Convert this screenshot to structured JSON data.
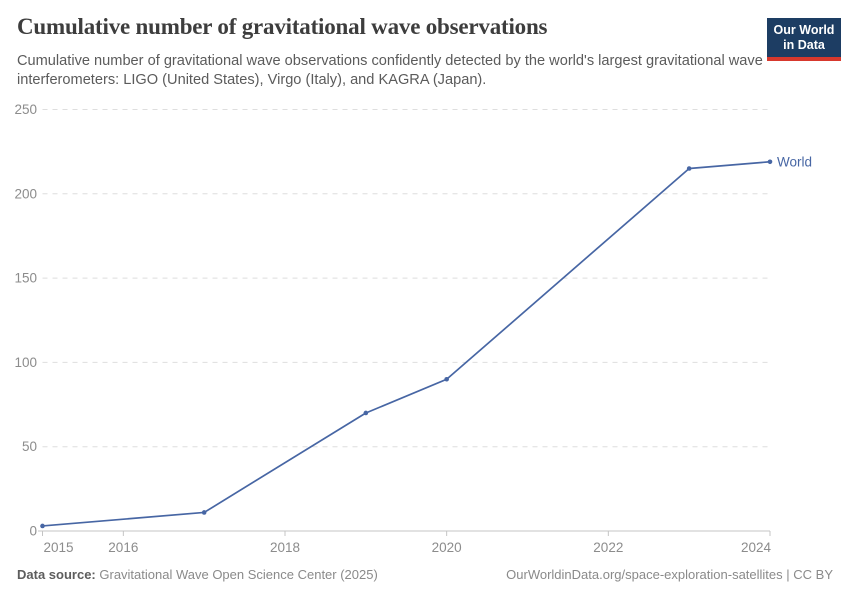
{
  "header": {
    "title": "Cumulative number of gravitational wave observations",
    "subtitle": "Cumulative number of gravitational wave observations confidently detected by the world's largest gravitational wave interferometers: LIGO (United States), Virgo (Italy), and KAGRA (Japan).",
    "logo": {
      "line1": "Our World",
      "line2": "in Data",
      "bg_color": "#1d3d63",
      "accent_color": "#d7382d"
    }
  },
  "chart_data": {
    "type": "line",
    "title": "Cumulative number of gravitational wave observations",
    "xlabel": "",
    "ylabel": "",
    "xlim": [
      2015,
      2024
    ],
    "ylim": [
      0,
      250
    ],
    "x_ticks": [
      2015,
      2016,
      2018,
      2020,
      2022,
      2024
    ],
    "y_ticks": [
      0,
      50,
      100,
      150,
      200,
      250
    ],
    "grid": "horizontal-dashed",
    "legend_position": "end-of-line-label",
    "series": [
      {
        "name": "World",
        "color": "#4766a4",
        "x": [
          2015,
          2017,
          2019,
          2020,
          2023,
          2024
        ],
        "values": [
          3,
          11,
          70,
          90,
          215,
          219
        ]
      }
    ]
  },
  "footer": {
    "datasource_label": "Data source:",
    "datasource_value": "Gravitational Wave Open Science Center (2025)",
    "url_text": "OurWorldinData.org/space-exploration-satellites",
    "separator": " | ",
    "license": "CC BY"
  },
  "colors": {
    "title_text": "#3d3d3d",
    "subtitle_text": "#5b5b5b",
    "axis_label": "#8c8c8c",
    "gridline": "#dedede",
    "axis_line": "#c4c4c4",
    "footer_text": "#8a8a8a"
  }
}
